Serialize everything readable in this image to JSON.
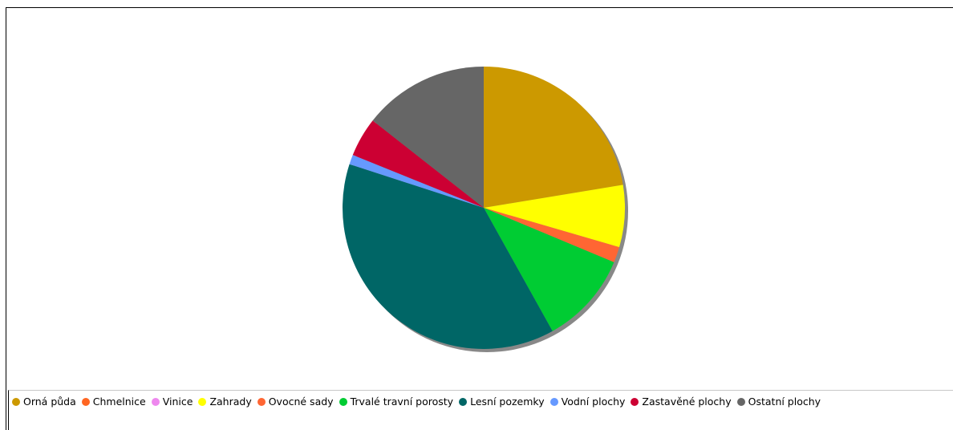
{
  "chart_data": {
    "type": "pie",
    "title": "",
    "legend_position": "bottom",
    "slices": [
      {
        "label": "Orná půda",
        "value": 22.4,
        "color": "#cc9900"
      },
      {
        "label": "Chmelnice",
        "value": 0.0,
        "color": "#ff6622"
      },
      {
        "label": "Vinice",
        "value": 0.0,
        "color": "#ee88ee"
      },
      {
        "label": "Zahrady",
        "value": 7.1,
        "color": "#ffff00"
      },
      {
        "label": "Ovocné sady",
        "value": 1.8,
        "color": "#ff6633"
      },
      {
        "label": "Trvalé travní porosty",
        "value": 10.6,
        "color": "#00cc33"
      },
      {
        "label": "Lesní pozemky",
        "value": 38.1,
        "color": "#006666"
      },
      {
        "label": "Vodní plochy",
        "value": 1.1,
        "color": "#6699ff"
      },
      {
        "label": "Zastavěné plochy",
        "value": 4.5,
        "color": "#cc0033"
      },
      {
        "label": "Ostatní plochy",
        "value": 14.4,
        "color": "#666666"
      }
    ]
  }
}
